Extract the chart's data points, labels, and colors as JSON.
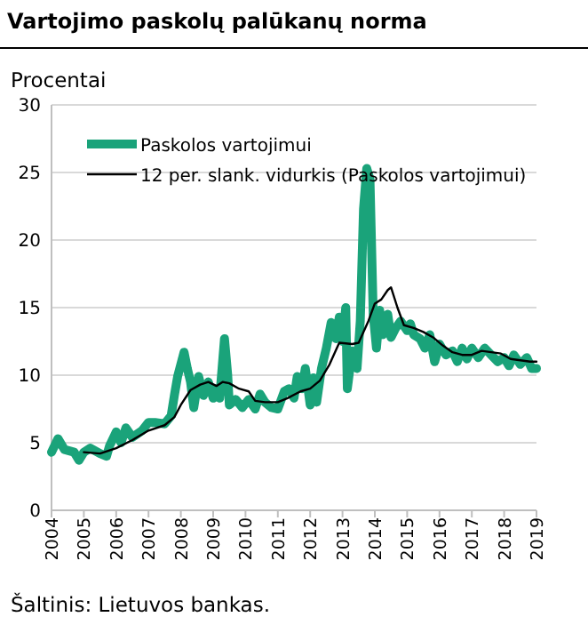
{
  "chart_data": {
    "type": "line",
    "title": "Vartojimo paskolų palūkanų norma",
    "ylabel": "Procentai",
    "annotations": [
      "Šaltinis: Lietuvos bankas."
    ],
    "xlim": [
      2004,
      2019
    ],
    "xticks": [
      2004,
      2005,
      2006,
      2007,
      2008,
      2009,
      2010,
      2011,
      2012,
      2013,
      2014,
      2015,
      2016,
      2017,
      2018,
      2019
    ],
    "ylim": [
      0,
      30
    ],
    "yticks": [
      0,
      5,
      10,
      15,
      20,
      25,
      30
    ],
    "grid": "y",
    "legend": "top left",
    "marker": "none",
    "series": [
      {
        "name": "Paskolos vartojimui",
        "color": "#1aa37a",
        "x": [
          2004.0,
          2004.2,
          2004.4,
          2004.7,
          2004.85,
          2005.0,
          2005.2,
          2005.5,
          2005.7,
          2005.8,
          2006.0,
          2006.15,
          2006.3,
          2006.5,
          2006.8,
          2007.0,
          2007.2,
          2007.5,
          2007.7,
          2007.8,
          2007.9,
          2008.1,
          2008.2,
          2008.3,
          2008.4,
          2008.55,
          2008.7,
          2008.85,
          2009.0,
          2009.1,
          2009.2,
          2009.35,
          2009.45,
          2009.5,
          2009.7,
          2009.9,
          2010.1,
          2010.3,
          2010.45,
          2010.6,
          2010.8,
          2011.0,
          2011.2,
          2011.35,
          2011.5,
          2011.6,
          2011.75,
          2011.85,
          2012.0,
          2012.1,
          2012.2,
          2012.35,
          2012.5,
          2012.65,
          2012.8,
          2012.9,
          2013.0,
          2013.1,
          2013.15,
          2013.3,
          2013.45,
          2013.55,
          2013.65,
          2013.75,
          2013.85,
          2013.95,
          2014.05,
          2014.15,
          2014.25,
          2014.4,
          2014.5,
          2014.65,
          2014.8,
          2015.0,
          2015.1,
          2015.2,
          2015.4,
          2015.55,
          2015.7,
          2015.85,
          2016.0,
          2016.2,
          2016.4,
          2016.55,
          2016.7,
          2016.85,
          2017.0,
          2017.2,
          2017.4,
          2017.6,
          2017.8,
          2018.0,
          2018.15,
          2018.3,
          2018.5,
          2018.7,
          2018.85,
          2019.0
        ],
        "values": [
          4.3,
          5.3,
          4.5,
          4.3,
          3.7,
          4.3,
          4.6,
          4.2,
          4.0,
          4.8,
          5.8,
          5.0,
          6.1,
          5.4,
          5.9,
          6.5,
          6.5,
          6.4,
          7.0,
          8.5,
          9.9,
          11.7,
          10.5,
          9.5,
          7.6,
          9.9,
          8.5,
          9.5,
          8.3,
          9.0,
          8.3,
          12.7,
          10.0,
          7.8,
          8.2,
          7.6,
          8.2,
          7.5,
          8.6,
          8.0,
          7.6,
          7.5,
          8.8,
          9.0,
          8.3,
          9.9,
          9.0,
          10.5,
          7.8,
          9.8,
          8.0,
          10.5,
          12.0,
          13.9,
          12.7,
          14.3,
          12.5,
          15.0,
          9.0,
          11.8,
          10.5,
          14.0,
          22.3,
          25.3,
          24.5,
          14.5,
          12.0,
          14.8,
          13.0,
          14.5,
          12.8,
          13.5,
          14.0,
          13.3,
          13.8,
          13.0,
          12.7,
          12.0,
          13.0,
          11.0,
          12.3,
          11.5,
          11.8,
          11.0,
          12.0,
          11.2,
          12.0,
          11.3,
          12.0,
          11.5,
          11.0,
          11.3,
          10.7,
          11.5,
          10.8,
          11.3,
          10.5,
          10.5
        ]
      },
      {
        "name": "12 per. slank. vidurkis (Paskolos vartojimui)",
        "color": "#000000",
        "x": [
          2005.0,
          2005.5,
          2006.0,
          2006.5,
          2007.0,
          2007.5,
          2007.8,
          2008.0,
          2008.3,
          2008.6,
          2008.85,
          2009.1,
          2009.3,
          2009.5,
          2009.8,
          2010.1,
          2010.3,
          2010.6,
          2011.0,
          2011.3,
          2011.7,
          2012.0,
          2012.3,
          2012.6,
          2012.9,
          2013.3,
          2013.5,
          2013.8,
          2014.0,
          2014.2,
          2014.4,
          2014.5,
          2014.7,
          2014.9,
          2015.2,
          2015.5,
          2015.8,
          2016.1,
          2016.4,
          2016.7,
          2017.0,
          2017.3,
          2017.6,
          2017.9,
          2018.2,
          2018.5,
          2018.8,
          2019.0
        ],
        "values": [
          4.3,
          4.2,
          4.6,
          5.2,
          5.9,
          6.3,
          6.9,
          7.8,
          8.9,
          9.3,
          9.5,
          9.2,
          9.5,
          9.4,
          9.0,
          8.8,
          8.1,
          8.0,
          8.0,
          8.3,
          8.8,
          9.0,
          9.6,
          10.8,
          12.4,
          12.3,
          12.4,
          14.0,
          15.3,
          15.6,
          16.3,
          16.5,
          15.0,
          13.7,
          13.5,
          13.2,
          12.8,
          12.2,
          11.7,
          11.5,
          11.5,
          11.8,
          11.7,
          11.6,
          11.2,
          11.1,
          11.0,
          11.0
        ]
      }
    ]
  }
}
